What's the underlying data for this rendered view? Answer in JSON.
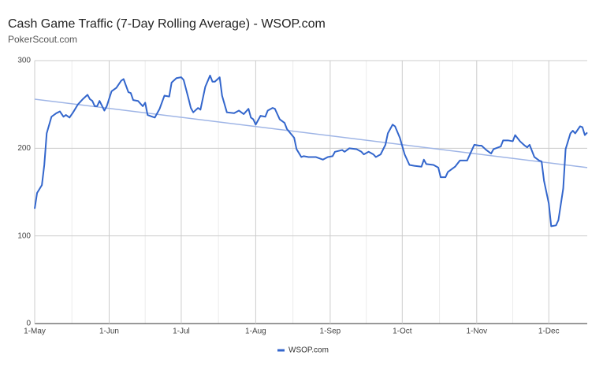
{
  "chart_data": {
    "type": "line",
    "title": "Cash Game Traffic (7-Day Rolling Average) - WSOP.com",
    "subtitle": "PokerScout.com",
    "xlim": [
      0,
      230
    ],
    "xticks": [
      {
        "value": 0,
        "label": "1-May"
      },
      {
        "value": 31,
        "label": "1-Jun"
      },
      {
        "value": 61,
        "label": "1-Jul"
      },
      {
        "value": 92,
        "label": "1-Aug"
      },
      {
        "value": 123,
        "label": "1-Sep"
      },
      {
        "value": 153,
        "label": "1-Oct"
      },
      {
        "value": 184,
        "label": "1-Nov"
      },
      {
        "value": 214,
        "label": "1-Dec"
      }
    ],
    "minor_xticks": [
      15.5,
      46,
      76.5,
      107.5,
      138,
      168.5,
      199
    ],
    "ylim": [
      0,
      300
    ],
    "yticks": [
      0,
      100,
      200,
      300
    ],
    "grid": true,
    "legend": "bottom",
    "series": [
      {
        "name": "WSOP.com",
        "color": "#3366cc",
        "x": [
          0,
          1,
          3,
          4,
          5,
          7,
          9,
          10.5,
          12,
          13,
          14.5,
          16,
          18,
          20,
          22,
          23,
          24,
          25,
          26,
          27,
          29,
          30,
          32,
          34,
          36,
          37,
          39,
          40,
          41,
          43,
          45,
          46,
          47,
          49,
          50,
          52,
          54,
          56,
          57,
          59,
          61,
          62,
          64,
          65,
          66,
          68,
          69,
          71,
          73,
          74,
          75,
          77,
          78,
          80,
          83,
          85,
          87,
          89,
          90,
          91,
          92,
          94,
          96,
          97,
          99,
          100,
          102,
          104,
          105,
          108,
          109,
          111,
          112,
          114,
          117,
          120,
          122,
          124,
          125,
          128,
          129,
          131,
          134,
          136,
          137,
          139,
          141,
          142,
          144,
          146,
          147,
          149,
          150,
          152,
          154,
          156,
          158,
          161,
          162,
          163,
          166,
          168,
          169,
          171,
          172,
          175,
          177,
          180,
          182,
          183,
          185,
          186,
          188,
          190,
          191,
          193,
          194,
          195,
          197,
          199,
          200,
          202,
          204,
          205,
          206,
          208,
          210,
          211,
          212,
          214,
          215,
          217,
          218,
          220,
          221,
          223,
          224,
          225,
          227,
          228,
          229,
          230
        ],
        "values": [
          131,
          149,
          158,
          181,
          217,
          236,
          240,
          242,
          236,
          238,
          235,
          241,
          250,
          256,
          261,
          256,
          254,
          248,
          248,
          254,
          243,
          248,
          265,
          269,
          277,
          279,
          264,
          263,
          255,
          254,
          248,
          252,
          238,
          236,
          235,
          245,
          260,
          259,
          275,
          280,
          281,
          278,
          257,
          246,
          241,
          246,
          244,
          270,
          283,
          276,
          276,
          281,
          260,
          241,
          240,
          243,
          239,
          245,
          235,
          233,
          227,
          237,
          236,
          243,
          246,
          245,
          233,
          229,
          222,
          212,
          199,
          190,
          191,
          190,
          190,
          187,
          190,
          191,
          196,
          198,
          196,
          200,
          199,
          196,
          193,
          196,
          193,
          190,
          193,
          204,
          217,
          227,
          225,
          212,
          193,
          181,
          180,
          179,
          187,
          182,
          181,
          178,
          167,
          167,
          173,
          179,
          186,
          186,
          198,
          204,
          203,
          203,
          198,
          194,
          199,
          201,
          202,
          209,
          209,
          208,
          215,
          208,
          203,
          201,
          204,
          190,
          186,
          185,
          163,
          137,
          111,
          112,
          118,
          154,
          199,
          217,
          220,
          217,
          225,
          224,
          215,
          218
        ]
      }
    ],
    "trendline": {
      "x": [
        0,
        230
      ],
      "values": [
        256,
        178
      ],
      "color": "#9fb5e6"
    }
  }
}
